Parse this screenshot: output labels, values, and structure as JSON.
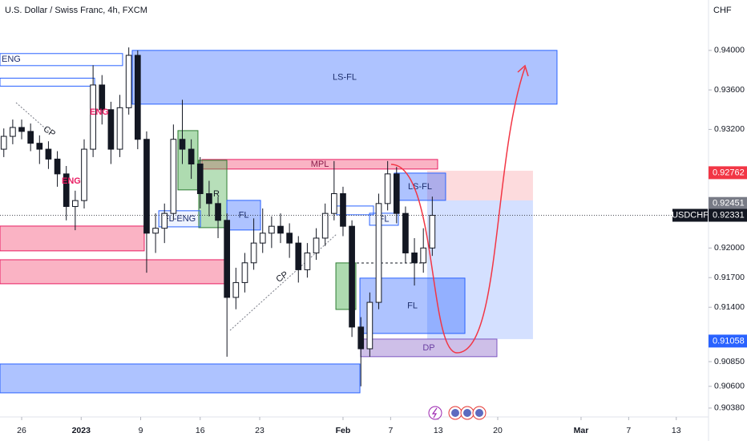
{
  "chart_data": {
    "type": "candlestick",
    "title": "U.S. Dollar / Swiss Franc, 4h, FXCM",
    "currency": "CHF",
    "grid": false,
    "up_color": "#ffffff",
    "down_color": "#131722",
    "xlim": [
      -1.82,
      57.71
    ],
    "ylim": [
      0.9029,
      0.9451
    ],
    "xticks": [
      {
        "value": 0,
        "label": "26"
      },
      {
        "value": 5,
        "label": "2023"
      },
      {
        "value": 10,
        "label": "9"
      },
      {
        "value": 15,
        "label": "16"
      },
      {
        "value": 20,
        "label": "23"
      },
      {
        "value": 27,
        "label": "Feb"
      },
      {
        "value": 31,
        "label": "7"
      },
      {
        "value": 35,
        "label": "13"
      },
      {
        "value": 40,
        "label": "20"
      },
      {
        "value": 47,
        "label": "Mar"
      },
      {
        "value": 51,
        "label": "7"
      },
      {
        "value": 55,
        "label": "13"
      }
    ],
    "yticks": [
      {
        "value": 0.94,
        "label": "0.94000"
      },
      {
        "value": 0.936,
        "label": "0.93600"
      },
      {
        "value": 0.932,
        "label": "0.93200"
      },
      {
        "value": 0.92,
        "label": "0.92000"
      },
      {
        "value": 0.917,
        "label": "0.91700"
      },
      {
        "value": 0.914,
        "label": "0.91400"
      },
      {
        "value": 0.9085,
        "label": "0.90850"
      },
      {
        "value": 0.906,
        "label": "0.90600"
      },
      {
        "value": 0.9038,
        "label": "0.90380"
      }
    ],
    "x": [
      -1.5,
      -0.75,
      0,
      0.75,
      1.5,
      2.25,
      3,
      3.75,
      4.5,
      5.25,
      6,
      6.75,
      7.5,
      8.25,
      9,
      9.75,
      10.5,
      11.25,
      12,
      12.75,
      13.5,
      14.25,
      15,
      15.75,
      16.5,
      17.25,
      18,
      18.75,
      19.5,
      20.25,
      21,
      21.75,
      22.5,
      23.25,
      24,
      24.75,
      25.5,
      26.25,
      27,
      27.75,
      28.5,
      29.25,
      30,
      30.75,
      31.5,
      32.25,
      33,
      33.75,
      34.5
    ],
    "open": [
      0.93,
      0.9313,
      0.9322,
      0.9318,
      0.9306,
      0.93,
      0.929,
      0.9275,
      0.9242,
      0.9248,
      0.93,
      0.9365,
      0.934,
      0.93,
      0.9342,
      0.9395,
      0.931,
      0.9215,
      0.922,
      0.9235,
      0.931,
      0.93,
      0.9285,
      0.9255,
      0.9245,
      0.9228,
      0.915,
      0.9165,
      0.9185,
      0.9205,
      0.9215,
      0.9222,
      0.9215,
      0.9205,
      0.9178,
      0.9195,
      0.921,
      0.9235,
      0.9255,
      0.9222,
      0.912,
      0.9098,
      0.9145,
      0.9245,
      0.9275,
      0.9235,
      0.9195,
      0.9185,
      0.92
    ],
    "high": [
      0.9321,
      0.933,
      0.933,
      0.9326,
      0.9314,
      0.9308,
      0.9298,
      0.9283,
      0.9258,
      0.931,
      0.9385,
      0.9375,
      0.9348,
      0.9355,
      0.9403,
      0.94,
      0.9318,
      0.9235,
      0.9245,
      0.9325,
      0.935,
      0.931,
      0.9292,
      0.9268,
      0.9252,
      0.9235,
      0.918,
      0.9195,
      0.923,
      0.924,
      0.9232,
      0.9235,
      0.9225,
      0.9212,
      0.9205,
      0.922,
      0.9245,
      0.9288,
      0.9262,
      0.9228,
      0.913,
      0.9155,
      0.9255,
      0.9288,
      0.9282,
      0.9242,
      0.921,
      0.922,
      0.9252
    ],
    "low": [
      0.9292,
      0.9305,
      0.931,
      0.9298,
      0.9285,
      0.928,
      0.9262,
      0.9228,
      0.9218,
      0.924,
      0.9292,
      0.9325,
      0.9285,
      0.9292,
      0.9335,
      0.93,
      0.9175,
      0.9195,
      0.9205,
      0.9228,
      0.9285,
      0.927,
      0.924,
      0.9232,
      0.921,
      0.909,
      0.9138,
      0.9155,
      0.9178,
      0.9195,
      0.92,
      0.9205,
      0.919,
      0.9165,
      0.917,
      0.9188,
      0.9202,
      0.9228,
      0.9212,
      0.911,
      0.906,
      0.909,
      0.9138,
      0.9238,
      0.9225,
      0.9185,
      0.9162,
      0.9175,
      0.9192
    ],
    "close": [
      0.9313,
      0.9322,
      0.9318,
      0.9306,
      0.93,
      0.929,
      0.9275,
      0.9242,
      0.9248,
      0.93,
      0.9365,
      0.934,
      0.93,
      0.9342,
      0.9395,
      0.931,
      0.9215,
      0.922,
      0.9235,
      0.931,
      0.93,
      0.9285,
      0.9255,
      0.9245,
      0.9228,
      0.915,
      0.9165,
      0.9185,
      0.9205,
      0.9215,
      0.9222,
      0.9215,
      0.9205,
      0.9178,
      0.9195,
      0.921,
      0.9235,
      0.9255,
      0.9222,
      0.912,
      0.9098,
      0.9145,
      0.9245,
      0.9275,
      0.9235,
      0.9195,
      0.9185,
      0.92,
      0.9233
    ],
    "zones": [
      {
        "x": [
          34.07,
          42.96
        ],
        "y": [
          0.92482,
          0.92782
        ],
        "fill": "rgba(242,54,69,0.18)",
        "stroke": "none"
      },
      {
        "x": [
          34.07,
          42.96
        ],
        "y": [
          0.91078,
          0.92482
        ],
        "fill": "rgba(41,98,255,0.2)",
        "stroke": "none"
      },
      {
        "x": [
          9.29,
          44.98
        ],
        "y": [
          0.93456,
          0.94
        ],
        "fill": "rgba(41,98,255,0.38)",
        "stroke": "#2962ff",
        "label": "LS-FL",
        "text_color": "#1e2f6e"
      },
      {
        "x": [
          -1.82,
          8.48
        ],
        "y": [
          0.93846,
          0.93968
        ],
        "fill": "none",
        "stroke": "#2962ff",
        "label": "ENG",
        "text_color": "#1e2f6e"
      },
      {
        "x": [
          -1.82,
          6.13
        ],
        "y": [
          0.93638,
          0.93719
        ],
        "fill": "none",
        "stroke": "#2962ff"
      },
      {
        "x": [
          15.15,
          34.95
        ],
        "y": [
          0.92799,
          0.92896
        ],
        "fill": "rgba(242,54,99,0.38)",
        "stroke": "#e91e63",
        "label": "MPL",
        "text_color": "#8b1a4a"
      },
      {
        "x": [
          13.13,
          14.81
        ],
        "y": [
          0.92588,
          0.93188
        ],
        "fill": "rgba(76,175,80,0.45)",
        "stroke": "#2e7d32"
      },
      {
        "x": [
          14.88,
          17.24
        ],
        "y": [
          0.92206,
          0.92888
        ],
        "fill": "rgba(76,175,80,0.4)",
        "stroke": "#2e7d32"
      },
      {
        "x": [
          26.4,
          28.08
        ],
        "y": [
          0.91378,
          0.91849
        ],
        "fill": "rgba(76,175,80,0.45)",
        "stroke": "#2e7d32"
      },
      {
        "x": [
          11.52,
          15.02
        ],
        "y": [
          0.92214,
          0.92377
        ],
        "fill": "rgba(41,98,255,0.08)",
        "stroke": "#2962ff",
        "label": "FL-ENG",
        "text_color": "#1e2f6e"
      },
      {
        "x": [
          17.24,
          20.07
        ],
        "y": [
          0.92182,
          0.92482
        ],
        "fill": "rgba(41,98,255,0.38)",
        "stroke": "#2962ff",
        "label": "FL",
        "text_color": "#1e2f6e"
      },
      {
        "x": [
          -1.82,
          10.3
        ],
        "y": [
          0.91971,
          0.92222
        ],
        "fill": "rgba(242,54,99,0.38)",
        "stroke": "#e91e63"
      },
      {
        "x": [
          -1.82,
          17.04
        ],
        "y": [
          0.91638,
          0.91881
        ],
        "fill": "rgba(242,54,99,0.38)",
        "stroke": "#e91e63"
      },
      {
        "x": [
          26.46,
          29.56
        ],
        "y": [
          0.92336,
          0.92425
        ],
        "fill": "none",
        "stroke": "#2962ff"
      },
      {
        "x": [
          29.23,
          31.65
        ],
        "y": [
          0.9223,
          0.92352
        ],
        "fill": "rgba(41,98,255,0.08)",
        "stroke": "#2962ff",
        "label": "FL",
        "text_color": "#1e2f6e"
      },
      {
        "x": [
          31.31,
          35.62
        ],
        "y": [
          0.92482,
          0.92758
        ],
        "fill": "rgba(41,98,255,0.38)",
        "stroke": "#2962ff",
        "label": "LS-FL",
        "text_color": "#1e2f6e"
      },
      {
        "x": [
          28.42,
          37.24
        ],
        "y": [
          0.91135,
          0.91695
        ],
        "fill": "rgba(41,98,255,0.38)",
        "stroke": "#2962ff",
        "label": "FL",
        "text_color": "#1e2f6e"
      },
      {
        "x": [
          28.48,
          39.93
        ],
        "y": [
          0.909,
          0.91078
        ],
        "fill": "rgba(126,87,194,0.38)",
        "stroke": "#7e57c2",
        "label": "DP",
        "text_color": "#6a3ea1"
      },
      {
        "x": [
          -1.82,
          28.42
        ],
        "y": [
          0.90534,
          0.90826
        ],
        "fill": "rgba(41,98,255,0.38)",
        "stroke": "#2962ff"
      }
    ],
    "current_price": 0.92331,
    "price_labels": [
      {
        "value": 0.92762,
        "label": "0.92762",
        "color": "#f23645"
      },
      {
        "value": 0.92451,
        "label": "0.92451",
        "color": "#787b86"
      },
      {
        "value": 0.92331,
        "label": "0.92331",
        "color": "#131722",
        "name": "USDCHF"
      },
      {
        "value": 0.91058,
        "label": "0.91058",
        "color": "#2962ff"
      }
    ],
    "annotations": [
      "CP",
      "CP",
      "ENG",
      "ENG",
      "R"
    ]
  }
}
